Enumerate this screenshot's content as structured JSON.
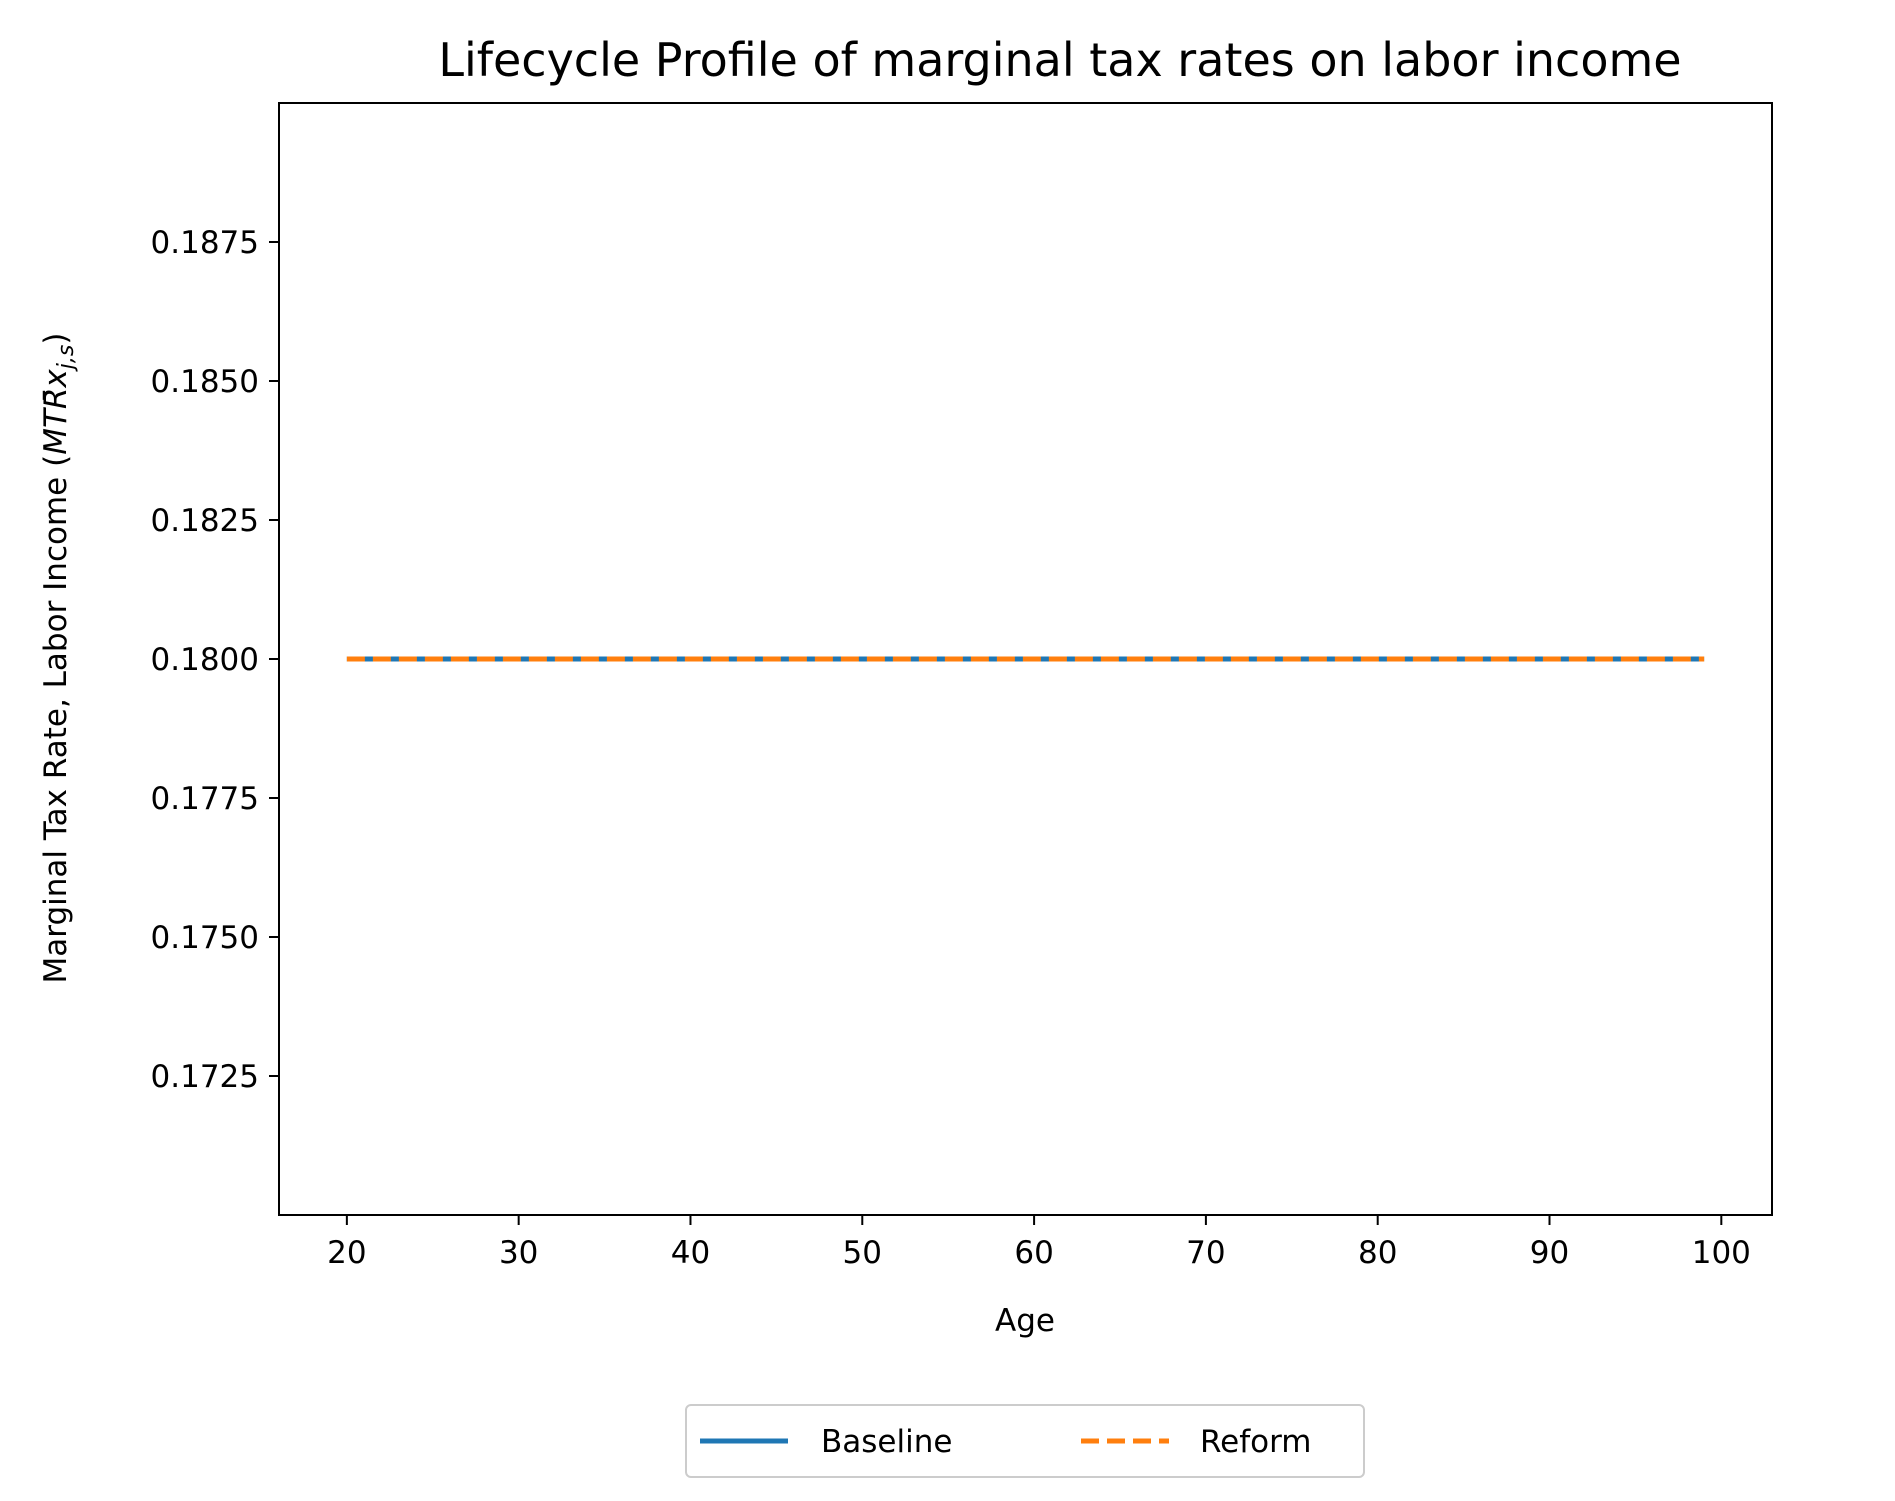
{
  "chart_data": {
    "type": "line",
    "title": "Lifecycle Profile of marginal tax rates on labor income",
    "xlabel": "Age",
    "ylabel": "Marginal Tax Rate, Labor Income",
    "ylabel_math": {
      "open": "(",
      "base": "MT",
      "accent_letter": "R",
      "accent_mark": "̄",
      "var": "x",
      "subscript": "j,s",
      "close": ")"
    },
    "x": [
      20,
      99
    ],
    "xlim": [
      16.05,
      102.95
    ],
    "ylim": [
      0.17,
      0.19
    ],
    "xticks": [
      20,
      30,
      40,
      50,
      60,
      70,
      80,
      90,
      100
    ],
    "yticks": [
      0.1725,
      0.175,
      0.1775,
      0.18,
      0.1825,
      0.185,
      0.1875
    ],
    "ytick_labels": [
      "0.1725",
      "0.1750",
      "0.1775",
      "0.1800",
      "0.1825",
      "0.1850",
      "0.1875"
    ],
    "grid": false,
    "legend_placement": "bottom-center",
    "series": [
      {
        "name": "Baseline",
        "values": [
          0.18,
          0.18
        ],
        "color": "#1f77b4",
        "style": "solid"
      },
      {
        "name": "Reform",
        "values": [
          0.18,
          0.18
        ],
        "color": "#ff7f0e",
        "style": "dashed"
      }
    ]
  }
}
